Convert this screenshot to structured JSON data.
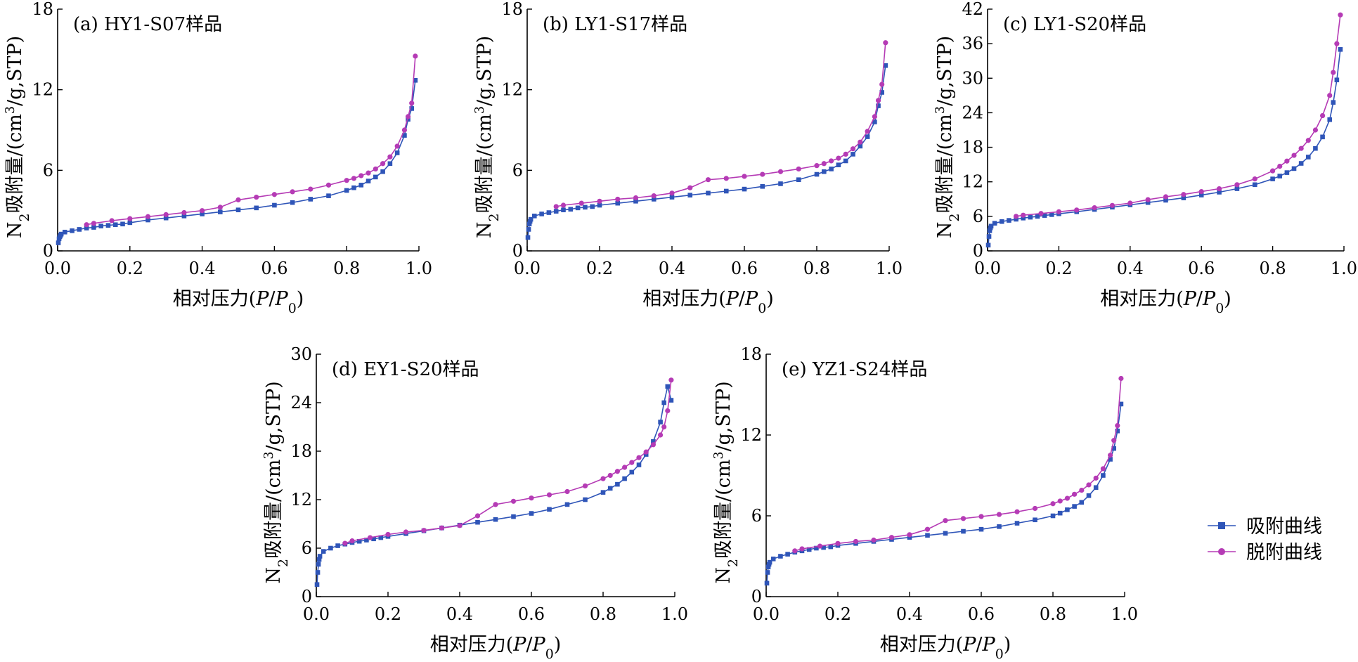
{
  "colors": {
    "adsorption": "#2f55b8",
    "desorption": "#b53bb5",
    "axis": "#000000"
  },
  "legend": {
    "placement": "right",
    "items": [
      {
        "label": "吸附曲线",
        "marker": "square",
        "color": "#2f55b8"
      },
      {
        "label": "脱附曲线",
        "marker": "circle",
        "color": "#b53bb5"
      }
    ]
  },
  "chart_data": [
    {
      "type": "line",
      "title": "(a) HY1-S07样品",
      "xlabel": "相对压力(P/P0)",
      "ylabel": "N2吸附量/(cm3/g,STP)",
      "xlim": [
        0,
        1.0
      ],
      "ylim": [
        0,
        18
      ],
      "xticks": [
        "0.0",
        "0.2",
        "0.4",
        "0.6",
        "0.8",
        "1.0"
      ],
      "yticks": [
        "0",
        "6",
        "12",
        "18"
      ],
      "series": [
        {
          "name": "吸附曲线",
          "marker": "square",
          "x": [
            0.002,
            0.004,
            0.006,
            0.008,
            0.01,
            0.02,
            0.04,
            0.06,
            0.08,
            0.1,
            0.12,
            0.14,
            0.16,
            0.18,
            0.2,
            0.25,
            0.3,
            0.35,
            0.4,
            0.45,
            0.5,
            0.55,
            0.6,
            0.65,
            0.7,
            0.75,
            0.8,
            0.82,
            0.84,
            0.86,
            0.88,
            0.9,
            0.92,
            0.94,
            0.96,
            0.97,
            0.98,
            0.99
          ],
          "y": [
            0.6,
            0.9,
            1.05,
            1.15,
            1.25,
            1.4,
            1.5,
            1.6,
            1.7,
            1.75,
            1.85,
            1.9,
            1.95,
            2.0,
            2.1,
            2.3,
            2.45,
            2.6,
            2.75,
            2.9,
            3.05,
            3.2,
            3.4,
            3.6,
            3.85,
            4.1,
            4.5,
            4.7,
            4.9,
            5.2,
            5.5,
            5.9,
            6.5,
            7.3,
            8.6,
            9.8,
            10.6,
            12.7
          ]
        },
        {
          "name": "脱附曲线",
          "marker": "circle",
          "x": [
            0.99,
            0.98,
            0.97,
            0.96,
            0.94,
            0.92,
            0.9,
            0.88,
            0.86,
            0.84,
            0.82,
            0.8,
            0.75,
            0.7,
            0.65,
            0.6,
            0.55,
            0.5,
            0.45,
            0.4,
            0.35,
            0.3,
            0.25,
            0.2,
            0.15,
            0.1,
            0.08
          ],
          "y": [
            14.5,
            11.0,
            10.0,
            9.0,
            7.8,
            7.0,
            6.5,
            6.1,
            5.8,
            5.6,
            5.4,
            5.25,
            4.9,
            4.6,
            4.4,
            4.2,
            4.0,
            3.8,
            3.25,
            3.0,
            2.85,
            2.7,
            2.55,
            2.4,
            2.25,
            2.05,
            1.95
          ]
        }
      ]
    },
    {
      "type": "line",
      "title": "(b) LY1-S17样品",
      "xlabel": "相对压力(P/P0)",
      "ylabel": "N2吸附量/(cm3/g,STP)",
      "xlim": [
        0,
        1.0
      ],
      "ylim": [
        0,
        18
      ],
      "xticks": [
        "0.0",
        "0.2",
        "0.4",
        "0.6",
        "0.8",
        "1.0"
      ],
      "yticks": [
        "0",
        "6",
        "12",
        "18"
      ],
      "series": [
        {
          "name": "吸附曲线",
          "marker": "square",
          "x": [
            0.002,
            0.004,
            0.006,
            0.008,
            0.01,
            0.02,
            0.04,
            0.06,
            0.08,
            0.1,
            0.12,
            0.14,
            0.16,
            0.18,
            0.2,
            0.25,
            0.3,
            0.35,
            0.4,
            0.45,
            0.5,
            0.55,
            0.6,
            0.65,
            0.7,
            0.75,
            0.8,
            0.82,
            0.84,
            0.86,
            0.88,
            0.9,
            0.92,
            0.94,
            0.96,
            0.97,
            0.98,
            0.99
          ],
          "y": [
            1.0,
            1.6,
            2.0,
            2.2,
            2.35,
            2.6,
            2.75,
            2.85,
            2.95,
            3.05,
            3.1,
            3.2,
            3.25,
            3.3,
            3.4,
            3.55,
            3.7,
            3.85,
            4.0,
            4.15,
            4.3,
            4.45,
            4.6,
            4.8,
            5.0,
            5.3,
            5.7,
            5.9,
            6.1,
            6.4,
            6.7,
            7.2,
            7.8,
            8.5,
            9.6,
            10.8,
            11.8,
            13.8
          ]
        },
        {
          "name": "脱附曲线",
          "marker": "circle",
          "x": [
            0.99,
            0.98,
            0.97,
            0.96,
            0.94,
            0.92,
            0.9,
            0.88,
            0.86,
            0.84,
            0.82,
            0.8,
            0.75,
            0.7,
            0.65,
            0.6,
            0.55,
            0.5,
            0.45,
            0.4,
            0.35,
            0.3,
            0.25,
            0.2,
            0.15,
            0.1,
            0.08
          ],
          "y": [
            15.5,
            12.4,
            11.2,
            10.0,
            8.9,
            8.1,
            7.6,
            7.2,
            6.9,
            6.7,
            6.5,
            6.35,
            6.1,
            5.9,
            5.7,
            5.55,
            5.4,
            5.3,
            4.7,
            4.3,
            4.1,
            3.95,
            3.85,
            3.7,
            3.55,
            3.4,
            3.3
          ]
        }
      ]
    },
    {
      "type": "line",
      "title": "(c) LY1-S20样品",
      "xlabel": "相对压力(P/P0)",
      "ylabel": "N2吸附量/(cm3/g,STP)",
      "xlim": [
        0,
        1.0
      ],
      "ylim": [
        0,
        42
      ],
      "xticks": [
        "0.0",
        "0.2",
        "0.4",
        "0.6",
        "0.8",
        "1.0"
      ],
      "yticks": [
        "0",
        "6",
        "12",
        "18",
        "24",
        "30",
        "36",
        "42"
      ],
      "series": [
        {
          "name": "吸附曲线",
          "marker": "square",
          "x": [
            0.002,
            0.004,
            0.006,
            0.008,
            0.01,
            0.02,
            0.04,
            0.06,
            0.08,
            0.1,
            0.12,
            0.14,
            0.16,
            0.18,
            0.2,
            0.25,
            0.3,
            0.35,
            0.4,
            0.45,
            0.5,
            0.55,
            0.6,
            0.65,
            0.7,
            0.75,
            0.8,
            0.82,
            0.84,
            0.86,
            0.88,
            0.9,
            0.92,
            0.94,
            0.96,
            0.97,
            0.98,
            0.99
          ],
          "y": [
            1.0,
            2.5,
            3.5,
            4.0,
            4.3,
            4.8,
            5.1,
            5.3,
            5.5,
            5.7,
            5.85,
            6.0,
            6.15,
            6.3,
            6.45,
            6.8,
            7.2,
            7.6,
            8.0,
            8.4,
            8.8,
            9.2,
            9.7,
            10.2,
            10.8,
            11.5,
            12.5,
            13.0,
            13.6,
            14.3,
            15.2,
            16.3,
            17.8,
            19.8,
            22.8,
            25.8,
            29.7,
            35.0
          ]
        },
        {
          "name": "脱附曲线",
          "marker": "circle",
          "x": [
            0.99,
            0.98,
            0.97,
            0.96,
            0.94,
            0.92,
            0.9,
            0.88,
            0.86,
            0.84,
            0.82,
            0.8,
            0.75,
            0.7,
            0.65,
            0.6,
            0.55,
            0.5,
            0.45,
            0.4,
            0.35,
            0.3,
            0.25,
            0.2,
            0.15,
            0.1,
            0.08
          ],
          "y": [
            41.0,
            36.0,
            31.0,
            27.0,
            23.5,
            21.0,
            19.2,
            17.8,
            16.6,
            15.6,
            14.7,
            13.9,
            12.5,
            11.5,
            10.8,
            10.3,
            9.8,
            9.4,
            8.9,
            8.3,
            7.9,
            7.5,
            7.1,
            6.8,
            6.5,
            6.2,
            6.0
          ]
        }
      ]
    },
    {
      "type": "line",
      "title": "(d) EY1-S20样品",
      "xlabel": "相对压力(P/P0)",
      "ylabel": "N2吸附量/(cm3/g,STP)",
      "xlim": [
        0,
        1.0
      ],
      "ylim": [
        0,
        30
      ],
      "xticks": [
        "0.0",
        "0.2",
        "0.4",
        "0.6",
        "0.8",
        "1.0"
      ],
      "yticks": [
        "0",
        "6",
        "12",
        "18",
        "24",
        "30"
      ],
      "series": [
        {
          "name": "吸附曲线",
          "marker": "square",
          "x": [
            0.002,
            0.004,
            0.006,
            0.008,
            0.01,
            0.02,
            0.04,
            0.06,
            0.08,
            0.1,
            0.12,
            0.14,
            0.16,
            0.18,
            0.2,
            0.25,
            0.3,
            0.35,
            0.4,
            0.45,
            0.5,
            0.55,
            0.6,
            0.65,
            0.7,
            0.75,
            0.8,
            0.82,
            0.84,
            0.86,
            0.88,
            0.9,
            0.92,
            0.94,
            0.96,
            0.97,
            0.98,
            0.99
          ],
          "y": [
            1.5,
            3.0,
            4.0,
            4.6,
            5.0,
            5.6,
            6.0,
            6.3,
            6.5,
            6.7,
            6.85,
            7.0,
            7.15,
            7.3,
            7.45,
            7.8,
            8.15,
            8.5,
            8.85,
            9.2,
            9.55,
            9.9,
            10.3,
            10.8,
            11.4,
            12.0,
            12.9,
            13.4,
            13.9,
            14.6,
            15.4,
            16.3,
            17.6,
            19.2,
            21.6,
            24.0,
            26.0,
            24.3
          ]
        },
        {
          "name": "脱附曲线",
          "marker": "circle",
          "x": [
            0.99,
            0.98,
            0.97,
            0.96,
            0.94,
            0.92,
            0.9,
            0.88,
            0.86,
            0.84,
            0.82,
            0.8,
            0.75,
            0.7,
            0.65,
            0.6,
            0.55,
            0.5,
            0.45,
            0.4,
            0.35,
            0.3,
            0.25,
            0.2,
            0.15,
            0.1,
            0.08
          ],
          "y": [
            26.8,
            23.0,
            21.0,
            20.0,
            18.8,
            17.9,
            17.2,
            16.6,
            16.0,
            15.5,
            15.0,
            14.6,
            13.7,
            13.0,
            12.6,
            12.2,
            11.8,
            11.4,
            10.0,
            8.8,
            8.5,
            8.2,
            8.0,
            7.7,
            7.3,
            6.9,
            6.6
          ]
        }
      ]
    },
    {
      "type": "line",
      "title": "(e) YZ1-S24样品",
      "xlabel": "相对压力(P/P0)",
      "ylabel": "N2吸附量/(cm3/g,STP)",
      "xlim": [
        0,
        1.0
      ],
      "ylim": [
        0,
        18
      ],
      "xticks": [
        "0.0",
        "0.2",
        "0.4",
        "0.6",
        "0.8",
        "1.0"
      ],
      "yticks": [
        "0",
        "6",
        "12",
        "18"
      ],
      "series": [
        {
          "name": "吸附曲线",
          "marker": "square",
          "x": [
            0.002,
            0.004,
            0.006,
            0.008,
            0.01,
            0.02,
            0.04,
            0.06,
            0.08,
            0.1,
            0.12,
            0.14,
            0.16,
            0.18,
            0.2,
            0.25,
            0.3,
            0.35,
            0.4,
            0.45,
            0.5,
            0.55,
            0.6,
            0.65,
            0.7,
            0.75,
            0.8,
            0.82,
            0.84,
            0.86,
            0.88,
            0.9,
            0.92,
            0.94,
            0.96,
            0.97,
            0.98,
            0.99
          ],
          "y": [
            1.0,
            1.8,
            2.2,
            2.4,
            2.55,
            2.8,
            3.0,
            3.15,
            3.3,
            3.4,
            3.5,
            3.6,
            3.65,
            3.7,
            3.8,
            3.95,
            4.1,
            4.25,
            4.4,
            4.55,
            4.7,
            4.85,
            5.0,
            5.2,
            5.45,
            5.7,
            6.0,
            6.2,
            6.45,
            6.7,
            7.0,
            7.5,
            8.1,
            9.0,
            10.2,
            11.0,
            12.3,
            14.3
          ]
        },
        {
          "name": "脱附曲线",
          "marker": "circle",
          "x": [
            0.99,
            0.98,
            0.97,
            0.96,
            0.94,
            0.92,
            0.9,
            0.88,
            0.86,
            0.84,
            0.82,
            0.8,
            0.75,
            0.7,
            0.65,
            0.6,
            0.55,
            0.5,
            0.45,
            0.4,
            0.35,
            0.3,
            0.25,
            0.2,
            0.15,
            0.1,
            0.08
          ],
          "y": [
            16.2,
            12.7,
            11.6,
            10.5,
            9.5,
            8.8,
            8.3,
            7.9,
            7.6,
            7.3,
            7.1,
            6.9,
            6.55,
            6.3,
            6.1,
            5.95,
            5.8,
            5.65,
            5.0,
            4.6,
            4.4,
            4.2,
            4.1,
            3.95,
            3.75,
            3.55,
            3.4
          ]
        }
      ]
    }
  ]
}
